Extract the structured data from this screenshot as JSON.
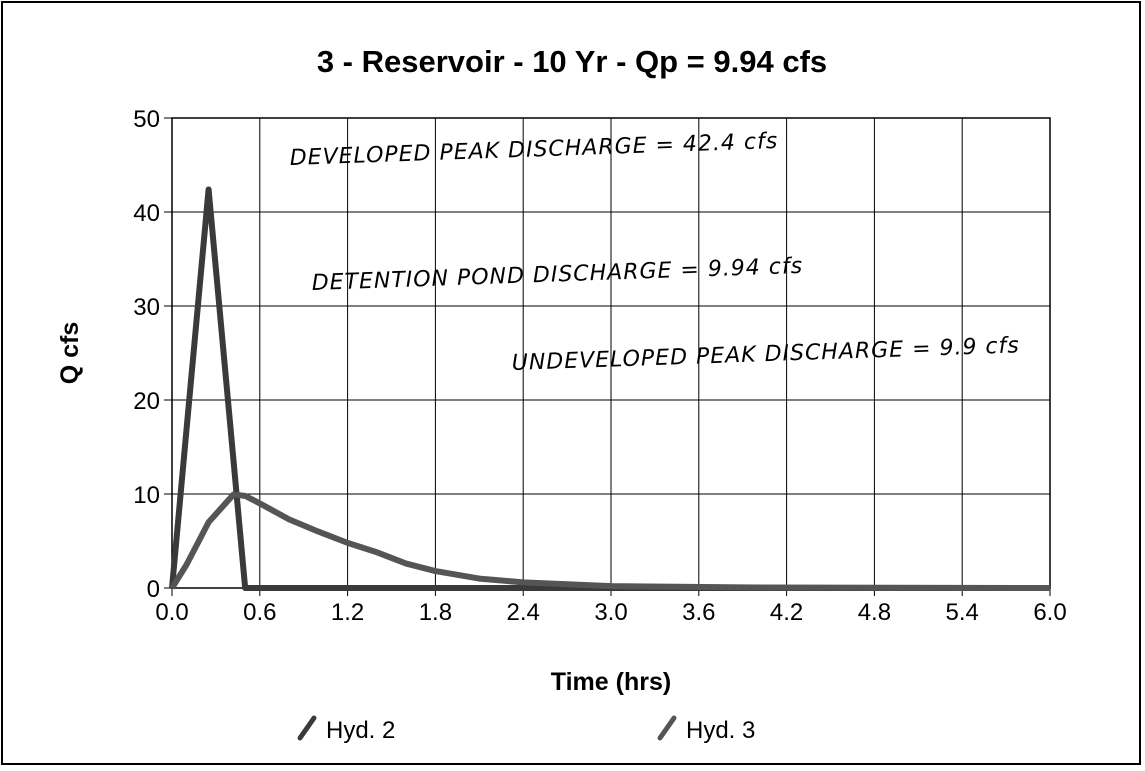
{
  "chart_data": {
    "type": "line",
    "title": "3 - Reservoir - 10 Yr - Qp = 9.94 cfs",
    "x_label": "Time (hrs)",
    "y_label": "Q cfs",
    "x": [
      0,
      0.1,
      0.25,
      0.42,
      0.5,
      0.6,
      0.8,
      1.0,
      1.2,
      1.4,
      1.6,
      1.8,
      2.1,
      2.4,
      3.0,
      4.0,
      6.0
    ],
    "series": [
      {
        "name": "Hyd. 2",
        "color": "#3a3a3a",
        "values": [
          0,
          17,
          42.4,
          13.6,
          0,
          0,
          0,
          0,
          0,
          0,
          0,
          0,
          0,
          0,
          0,
          0,
          0
        ]
      },
      {
        "name": "Hyd. 3",
        "color": "#555555",
        "values": [
          0,
          2.5,
          7,
          9.94,
          9.8,
          9.0,
          7.3,
          6.0,
          4.8,
          3.8,
          2.6,
          1.8,
          1.0,
          0.6,
          0.2,
          0.05,
          0
        ]
      }
    ],
    "xlim": [
      0,
      6
    ],
    "ylim": [
      0,
      50
    ],
    "xticks": [
      {
        "value": 0,
        "label": "0.0"
      },
      0.6,
      1.2,
      1.8,
      2.4,
      {
        "value": 3,
        "label": "3.0"
      },
      3.6,
      4.2,
      4.8,
      5.4,
      {
        "value": 6,
        "label": "6.0"
      }
    ],
    "yticks": [
      0,
      10,
      20,
      30,
      40,
      50
    ],
    "grid": true,
    "annotations": [
      "DEVELOPED PEAK DISCHARGE = 42.4 cfs",
      "DETENTION POND DISCHARGE = 9.94 cfs",
      "UNDEVELOPED PEAK DISCHARGE = 9.9 cfs"
    ]
  }
}
